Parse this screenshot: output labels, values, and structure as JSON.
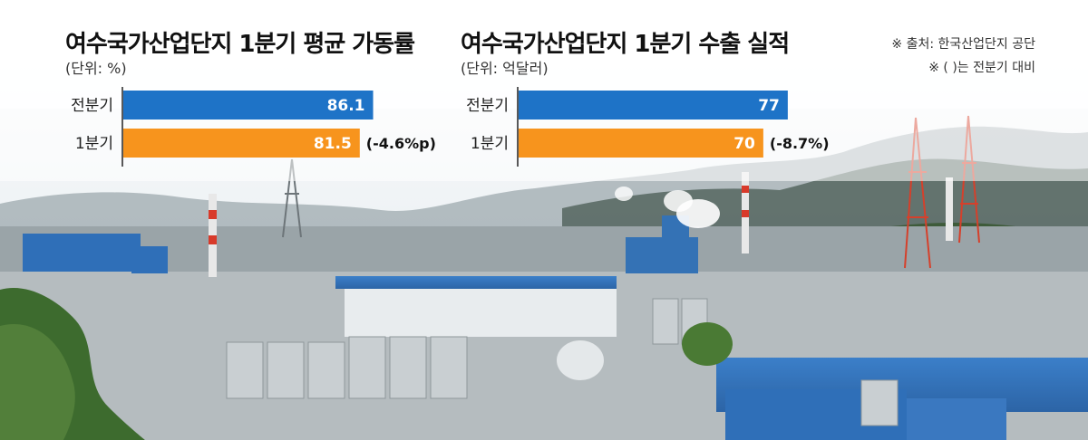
{
  "colors": {
    "previous": "#1e73c7",
    "current": "#f7941d",
    "sky": "#eef3f7"
  },
  "notes": {
    "source": "※ 출처: 한국산업단지 공단",
    "comparison": "※ (   )는 전분기 대비"
  },
  "chart_data": [
    {
      "type": "bar",
      "orientation": "horizontal",
      "title": "여수국가산업단지 1분기 평균 가동률",
      "unit": "(단위: %)",
      "categories": [
        "전분기",
        "1분기"
      ],
      "values": [
        86.1,
        81.5
      ],
      "value_labels": [
        "86.1",
        "81.5"
      ],
      "annotations": [
        "",
        "(-4.6%p)"
      ],
      "xlim": [
        0,
        100
      ]
    },
    {
      "type": "bar",
      "orientation": "horizontal",
      "title": "여수국가산업단지 1분기 수출 실적",
      "unit": "(단위: 억달러)",
      "categories": [
        "전분기",
        "1분기"
      ],
      "values": [
        77,
        70
      ],
      "value_labels": [
        "77",
        "70"
      ],
      "annotations": [
        "",
        "(-8.7%)"
      ],
      "xlim": [
        0,
        83
      ]
    }
  ]
}
